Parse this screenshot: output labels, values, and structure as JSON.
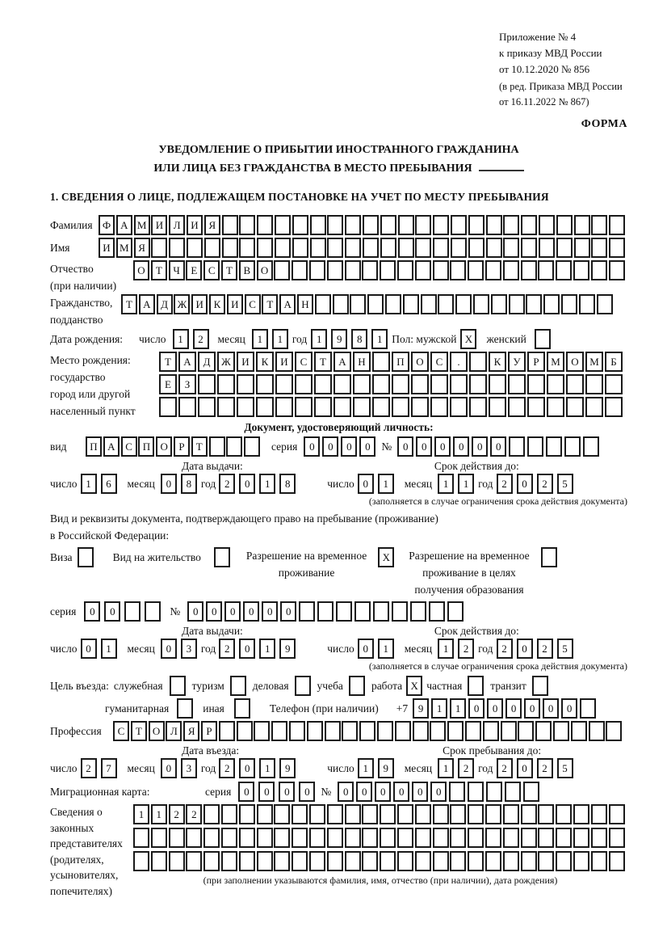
{
  "marks": {
    "checked": "X"
  },
  "header": {
    "appendix_lines": [
      "Приложение № 4",
      "к приказу МВД России",
      "от 10.12.2020 № 856"
    ],
    "amendment_lines": [
      "(в ред. Приказа МВД России",
      "от 16.11.2022 № 867)"
    ],
    "form_label": "ФОРМА",
    "title_line1": "УВЕДОМЛЕНИЕ О ПРИБЫТИИ ИНОСТРАННОГО ГРАЖДАНИНА",
    "title_line2": "ИЛИ ЛИЦА БЕЗ ГРАЖДАНСТВА В МЕСТО ПРЕБЫВАНИЯ",
    "section1_title": "1. СВЕДЕНИЯ О ЛИЦЕ, ПОДЛЕЖАЩЕМ ПОСТАНОВКЕ НА УЧЕТ ПО МЕСТУ ПРЕБЫВАНИЯ"
  },
  "labels": {
    "surname": "Фамилия",
    "name": "Имя",
    "patronymic": "Отчество",
    "patronymic_note": "(при наличии)",
    "citizenship1": "Гражданство,",
    "citizenship2": "подданство",
    "birth_date": "Дата рождения:",
    "day": "число",
    "month": "месяц",
    "year": "год",
    "sex_male": "Пол: мужской",
    "sex_female": "женский",
    "birth_place": "Место рождения:",
    "birth_place_state": "государство",
    "birth_place_city": "город или другой",
    "birth_place_settlement": "населенный пункт",
    "identity_doc_header": "Документ, удостоверяющий личность:",
    "doc_kind": "вид",
    "series": "серия",
    "number": "№",
    "issue_date": "Дата выдачи:",
    "valid_until": "Срок действия до:",
    "validity_note": "(заполняется в случае ограничения срока действия документа)",
    "right_doc_line1": "Вид и реквизиты документа, подтверждающего право на пребывание (проживание)",
    "right_doc_line2": "в Российской Федерации:",
    "visa": "Виза",
    "residence_permit": "Вид на жительство",
    "temp_res_line1": "Разрешение на временное",
    "temp_res_line2": "проживание",
    "temp_res_edu_line1": "Разрешение на временное",
    "temp_res_edu_line2": "проживание в целях",
    "temp_res_edu_line3": "получения образования",
    "purpose_prefix": "Цель въезда:",
    "official": "служебная",
    "tourism": "туризм",
    "business": "деловая",
    "study": "учеба",
    "work": "работа",
    "private": "частная",
    "transit": "транзит",
    "humanitarian": "гуманитарная",
    "other": "иная",
    "phone": "Телефон (при наличии)",
    "phone_prefix": "+7",
    "profession": "Профессия",
    "entry_date": "Дата въезда:",
    "stay_until": "Срок пребывания до:",
    "migration_card": "Миграционная карта:",
    "rep_line1": "Сведения о",
    "rep_line2": "законных",
    "rep_line3": "представителях",
    "rep_line4": "(родителях,",
    "rep_line5": "усыновителях,",
    "rep_line6": "попечителях)",
    "rep_note": "(при заполнении указываются фамилия, имя, отчество (при наличии), дата рождения)"
  },
  "fields": {
    "surname": {
      "count": 30,
      "value": "ФАМИЛИЯ"
    },
    "name": {
      "count": 30,
      "value": "ИМЯ"
    },
    "patronymic": {
      "count": 28,
      "value": "ОТЧЕСТВО"
    },
    "citizenship": {
      "count": 28,
      "value": "ТАДЖИКИСТАН"
    },
    "birth_day": {
      "count": 2,
      "value": "12"
    },
    "birth_month": {
      "count": 2,
      "value": "11"
    },
    "birth_year": {
      "count": 4,
      "value": "1981"
    },
    "birth_place_row1": {
      "count": 24,
      "value": "ТАДЖИКИСТАН ПОС. КУРМОМБ"
    },
    "birth_place_row2": {
      "count": 24,
      "value": "ЕЗ"
    },
    "birth_place_row3": {
      "count": 24,
      "value": ""
    },
    "id_kind": {
      "count": 10,
      "value": "ПАСПОРТ"
    },
    "id_series": {
      "count": 4,
      "value": "0000"
    },
    "id_number": {
      "count": 11,
      "value": "000000"
    },
    "id_issue_day": {
      "count": 2,
      "value": "16"
    },
    "id_issue_month": {
      "count": 2,
      "value": "08"
    },
    "id_issue_year": {
      "count": 4,
      "value": "2018"
    },
    "id_valid_day": {
      "count": 2,
      "value": "01"
    },
    "id_valid_month": {
      "count": 2,
      "value": "11"
    },
    "id_valid_year": {
      "count": 4,
      "value": "2025"
    },
    "permit_series": {
      "count": 4,
      "value": "00"
    },
    "permit_number": {
      "count": 15,
      "value": "000000"
    },
    "permit_issue_day": {
      "count": 2,
      "value": "01"
    },
    "permit_issue_month": {
      "count": 2,
      "value": "03"
    },
    "permit_issue_year": {
      "count": 4,
      "value": "2019"
    },
    "permit_valid_day": {
      "count": 2,
      "value": "01"
    },
    "permit_valid_month": {
      "count": 2,
      "value": "12"
    },
    "permit_valid_year": {
      "count": 4,
      "value": "2025"
    },
    "phone": {
      "count": 10,
      "value": "911000000"
    },
    "profession": {
      "count": 29,
      "value": "СТОЛЯР"
    },
    "entry_day": {
      "count": 2,
      "value": "27"
    },
    "entry_month": {
      "count": 2,
      "value": "03"
    },
    "entry_year": {
      "count": 4,
      "value": "2019"
    },
    "stay_day": {
      "count": 2,
      "value": "19"
    },
    "stay_month": {
      "count": 2,
      "value": "12"
    },
    "stay_year": {
      "count": 4,
      "value": "2025"
    },
    "mig_series": {
      "count": 4,
      "value": "0000"
    },
    "mig_number": {
      "count": 11,
      "value": "000000"
    },
    "rep_row1": {
      "count": 28,
      "value": "1122"
    },
    "rep_row2": {
      "count": 28,
      "value": ""
    },
    "rep_row3": {
      "count": 28,
      "value": ""
    }
  },
  "checkboxes": {
    "sex_male": true,
    "sex_female": false,
    "visa": false,
    "residence_permit": false,
    "temp_residence": true,
    "temp_residence_edu": false,
    "official": false,
    "tourism": false,
    "business": false,
    "study": false,
    "work": true,
    "private": false,
    "transit": false,
    "humanitarian": false,
    "other": false
  }
}
